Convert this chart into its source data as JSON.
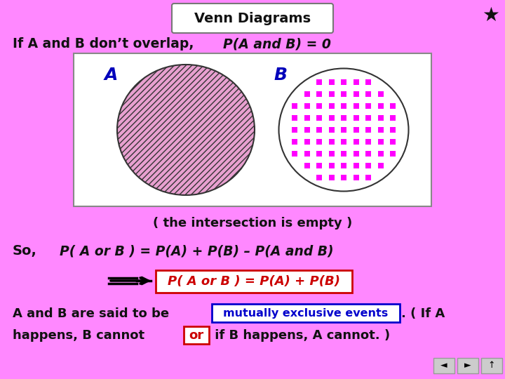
{
  "bg_color": "#ff88ff",
  "title": "Venn Diagrams",
  "star_color": "#111111",
  "line1_regular": "If A and B don’t overlap, ",
  "line1_math": "P(A and B) = 0",
  "venn_box_bg": "#ffffff",
  "circle_A_color": "#e8a0d0",
  "circle_A_label": "A",
  "circle_B_label": "B",
  "intersection_text": "( the intersection is empty )",
  "so_label": "So,",
  "so_math": "P( A or B ) = P(A) + P(B) – P(A and B)",
  "box_formula": "P( A or B ) = P(A) + P(B)",
  "mutually_text": "mutually exclusive events",
  "dot_color": "#ff00ff",
  "font_color_blue": "#0000bb",
  "font_color_black": "#111111",
  "font_color_red": "#cc0000",
  "font_color_dark": "#111111",
  "font_color_darkpurple": "#220033"
}
